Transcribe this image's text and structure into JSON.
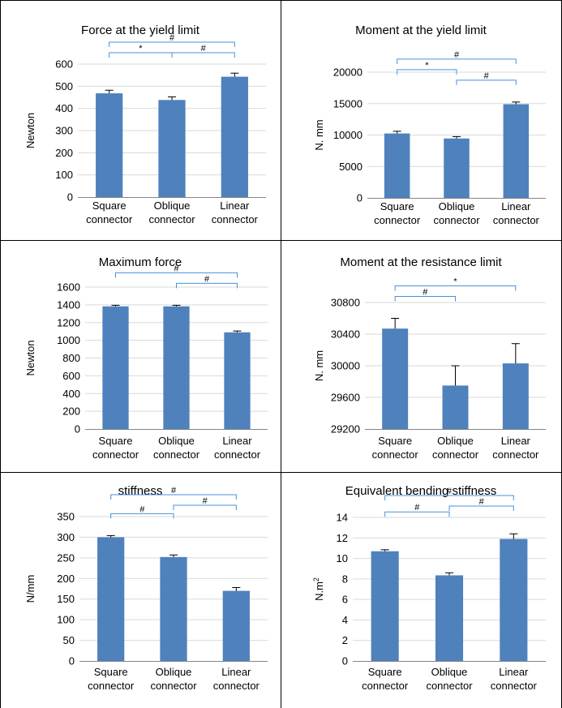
{
  "chart_data": [
    {
      "type": "bar",
      "title": "Force at the yield limit",
      "ylabel": "Newton",
      "categories": [
        [
          "Square",
          "connector"
        ],
        [
          "Oblique",
          "connector"
        ],
        [
          "Linear",
          "connector"
        ]
      ],
      "values": [
        468,
        438,
        543
      ],
      "errors": [
        14,
        14,
        16
      ],
      "ylim": [
        0,
        600
      ],
      "yticks": [
        "0",
        "100",
        "200",
        "300",
        "400",
        "500",
        "600"
      ],
      "color": "#4f81bd",
      "bracket_color": "#4a90d9",
      "brackets": [
        {
          "from": 0,
          "to": 2,
          "label": "#"
        },
        {
          "from": 0,
          "to": 1,
          "label": "*"
        },
        {
          "from": 1,
          "to": 2,
          "label": "#"
        }
      ]
    },
    {
      "type": "bar",
      "title": "Moment at the yield limit",
      "ylabel": "N. mm",
      "categories": [
        [
          "Square",
          "connector"
        ],
        [
          "Oblique",
          "connector"
        ],
        [
          "Linear",
          "connector"
        ]
      ],
      "values": [
        10250,
        9450,
        14900
      ],
      "errors": [
        350,
        300,
        350
      ],
      "ylim": [
        0,
        20000
      ],
      "yticks": [
        "0",
        "5000",
        "10000",
        "15000",
        "20000"
      ],
      "color": "#4f81bd",
      "bracket_color": "#4a90d9",
      "brackets": [
        {
          "from": 0,
          "to": 2,
          "label": "#"
        },
        {
          "from": 1,
          "to": 2,
          "label": "#"
        },
        {
          "from": 0,
          "to": 1,
          "label": "*"
        }
      ]
    },
    {
      "type": "bar",
      "title": "Maximum force",
      "ylabel": "Newton",
      "categories": [
        [
          "Square",
          "connector"
        ],
        [
          "Oblique",
          "connector"
        ],
        [
          "Linear",
          "connector"
        ]
      ],
      "values": [
        1383,
        1383,
        1090
      ],
      "errors": [
        12,
        12,
        15
      ],
      "ylim": [
        0,
        1600
      ],
      "yticks": [
        "0",
        "200",
        "400",
        "600",
        "800",
        "1000",
        "1200",
        "1400",
        "1600"
      ],
      "color": "#4f81bd",
      "bracket_color": "#4a90d9",
      "brackets": [
        {
          "from": 0,
          "to": 2,
          "label": "#"
        },
        {
          "from": 1,
          "to": 2,
          "label": "#"
        }
      ]
    },
    {
      "type": "bar",
      "title": "Moment at the resistance limit",
      "ylabel": "N. mm",
      "categories": [
        [
          "Square",
          "connector"
        ],
        [
          "Oblique",
          "connector"
        ],
        [
          "Linear",
          "connector"
        ]
      ],
      "values": [
        30470,
        29750,
        30030
      ],
      "errors": [
        130,
        250,
        250
      ],
      "ylim": [
        29200,
        30800
      ],
      "yticks": [
        "29200",
        "29600",
        "30000",
        "30400",
        "30800"
      ],
      "color": "#4f81bd",
      "bracket_color": "#4a90d9",
      "brackets": [
        {
          "from": 0,
          "to": 2,
          "label": "*"
        },
        {
          "from": 0,
          "to": 1,
          "label": "#"
        }
      ]
    },
    {
      "type": "bar",
      "title": "stiffness",
      "ylabel": "N/mm",
      "categories": [
        [
          "Square",
          "connector"
        ],
        [
          "Oblique",
          "connector"
        ],
        [
          "Linear",
          "connector"
        ]
      ],
      "values": [
        300,
        252,
        170
      ],
      "errors": [
        4,
        5,
        8
      ],
      "ylim": [
        0,
        350
      ],
      "yticks": [
        "0",
        "50",
        "100",
        "150",
        "200",
        "250",
        "300",
        "350"
      ],
      "color": "#4f81bd",
      "bracket_color": "#4a90d9",
      "brackets": [
        {
          "from": 0,
          "to": 2,
          "label": "#"
        },
        {
          "from": 0,
          "to": 1,
          "label": "#"
        },
        {
          "from": 1,
          "to": 2,
          "label": "#"
        }
      ]
    },
    {
      "type": "bar",
      "title": "Equivalent bending stiffness",
      "ylabel": "N.m",
      "ylabel_sup": "2",
      "categories": [
        [
          "Square",
          "connector"
        ],
        [
          "Oblique",
          "connector"
        ],
        [
          "Linear",
          "connector"
        ]
      ],
      "values": [
        10.7,
        8.35,
        11.9
      ],
      "errors": [
        0.15,
        0.25,
        0.5
      ],
      "ylim": [
        0,
        14
      ],
      "yticks": [
        "0",
        "2",
        "4",
        "6",
        "8",
        "10",
        "12",
        "14"
      ],
      "color": "#4f81bd",
      "bracket_color": "#4a90d9",
      "brackets": [
        {
          "from": 0,
          "to": 2,
          "label": "#"
        },
        {
          "from": 0,
          "to": 1,
          "label": "#"
        },
        {
          "from": 1,
          "to": 2,
          "label": "#"
        }
      ]
    }
  ]
}
